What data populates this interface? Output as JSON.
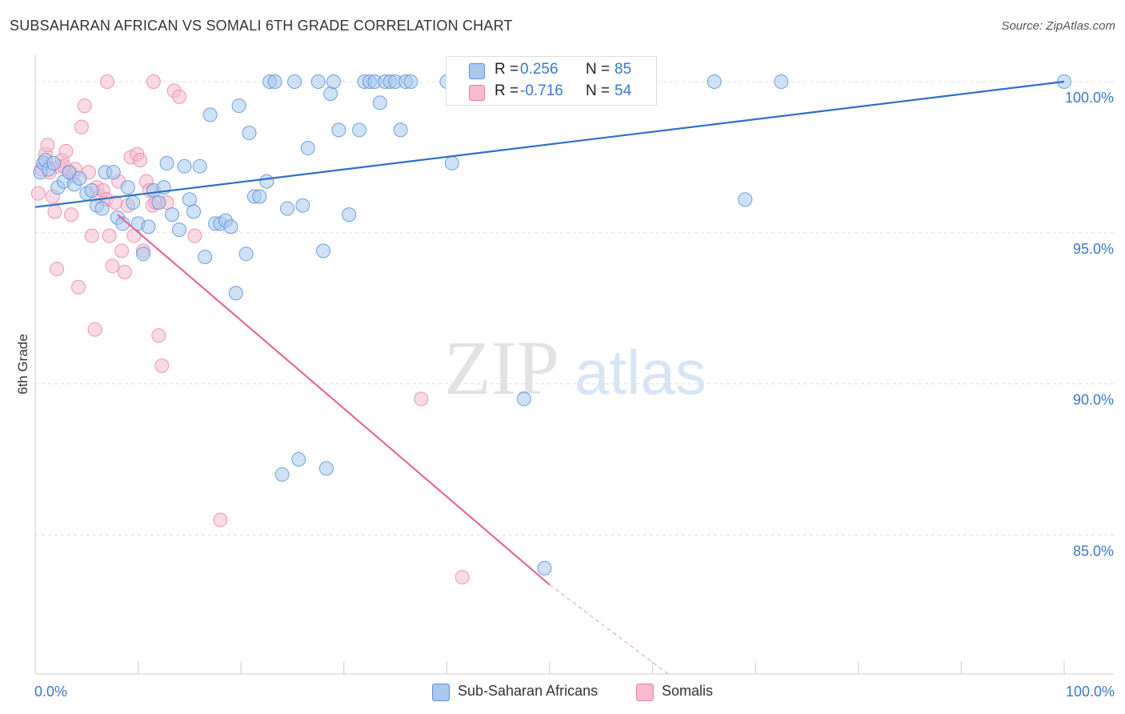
{
  "header": {
    "title": "SUBSAHARAN AFRICAN VS SOMALI 6TH GRADE CORRELATION CHART",
    "source": "Source: ZipAtlas.com"
  },
  "watermark": {
    "zip": "ZIP",
    "atlas": "atlas"
  },
  "legend_top": {
    "rows": [
      {
        "r_label": "R =",
        "r_value": "0.256",
        "n_label": "N =",
        "n_value": "85"
      },
      {
        "r_label": "R =",
        "r_value": "-0.716",
        "n_label": "N =",
        "n_value": "54"
      }
    ]
  },
  "legend_bottom": {
    "items": [
      {
        "label": "Sub-Saharan Africans"
      },
      {
        "label": "Somalis"
      }
    ]
  },
  "colors": {
    "blue_fill": "#a8c8ee",
    "blue_stroke": "#5b8fd6",
    "blue_line": "#2f6fc8",
    "pink_fill": "#f6bccd",
    "pink_stroke": "#e87fa2",
    "pink_line": "#e06a98",
    "axis_label": "#3a78c9",
    "grid": "#dddddd"
  },
  "chart_data": {
    "type": "scatter",
    "title": "SUBSAHARAN AFRICAN VS SOMALI 6TH GRADE CORRELATION CHART",
    "xlabel": "",
    "ylabel": "6th Grade",
    "xlim": [
      0,
      100
    ],
    "ylim": [
      80.4,
      100.9
    ],
    "x_tick_labels": [
      {
        "value": 0,
        "label": "0.0%"
      },
      {
        "value": 100,
        "label": "100.0%"
      }
    ],
    "y_tick_labels": [
      {
        "value": 100,
        "label": "100.0%"
      },
      {
        "value": 95,
        "label": "95.0%"
      },
      {
        "value": 90,
        "label": "90.0%"
      },
      {
        "value": 85,
        "label": "85.0%"
      }
    ],
    "series": [
      {
        "name": "Sub-Saharan Africans",
        "r": 0.256,
        "n": 85,
        "trend": {
          "x0": 0,
          "y0": 95.85,
          "x1": 100,
          "y1": 100.0
        },
        "points": [
          [
            0.5,
            97.0
          ],
          [
            0.8,
            97.3
          ],
          [
            1.0,
            97.4
          ],
          [
            1.3,
            97.1
          ],
          [
            1.8,
            97.3
          ],
          [
            2.2,
            96.5
          ],
          [
            2.8,
            96.7
          ],
          [
            3.3,
            97.0
          ],
          [
            3.8,
            96.6
          ],
          [
            4.3,
            96.8
          ],
          [
            5.0,
            96.3
          ],
          [
            5.5,
            96.4
          ],
          [
            6.0,
            95.9
          ],
          [
            6.5,
            95.8
          ],
          [
            6.8,
            97.0
          ],
          [
            7.6,
            97.0
          ],
          [
            8.0,
            95.5
          ],
          [
            8.5,
            95.3
          ],
          [
            9.0,
            96.5
          ],
          [
            9.5,
            96.0
          ],
          [
            10.0,
            95.3
          ],
          [
            10.5,
            94.3
          ],
          [
            11.0,
            95.2
          ],
          [
            11.5,
            96.4
          ],
          [
            12.0,
            96.0
          ],
          [
            12.5,
            96.5
          ],
          [
            12.8,
            97.3
          ],
          [
            13.3,
            95.6
          ],
          [
            14.0,
            95.1
          ],
          [
            14.5,
            97.2
          ],
          [
            15.0,
            96.1
          ],
          [
            15.4,
            95.7
          ],
          [
            16.0,
            97.2
          ],
          [
            16.5,
            94.2
          ],
          [
            17.0,
            98.9
          ],
          [
            17.5,
            95.3
          ],
          [
            18.0,
            95.3
          ],
          [
            18.5,
            95.4
          ],
          [
            19.0,
            95.2
          ],
          [
            19.5,
            93.0
          ],
          [
            19.8,
            99.2
          ],
          [
            20.5,
            94.3
          ],
          [
            20.8,
            98.3
          ],
          [
            21.3,
            96.2
          ],
          [
            21.8,
            96.2
          ],
          [
            22.5,
            96.7
          ],
          [
            22.8,
            100.0
          ],
          [
            23.3,
            100.0
          ],
          [
            24.0,
            87.0
          ],
          [
            24.5,
            95.8
          ],
          [
            25.2,
            100.0
          ],
          [
            25.6,
            87.5
          ],
          [
            26.0,
            95.9
          ],
          [
            26.5,
            97.8
          ],
          [
            27.5,
            100.0
          ],
          [
            28.0,
            94.4
          ],
          [
            28.3,
            87.2
          ],
          [
            28.7,
            99.6
          ],
          [
            29.0,
            100.0
          ],
          [
            29.5,
            98.4
          ],
          [
            30.5,
            95.6
          ],
          [
            31.5,
            98.4
          ],
          [
            32.0,
            100.0
          ],
          [
            32.5,
            100.0
          ],
          [
            33.0,
            100.0
          ],
          [
            33.5,
            99.3
          ],
          [
            34.0,
            100.0
          ],
          [
            34.5,
            100.0
          ],
          [
            35.0,
            100.0
          ],
          [
            35.5,
            98.4
          ],
          [
            36.0,
            100.0
          ],
          [
            36.5,
            100.0
          ],
          [
            40.0,
            100.0
          ],
          [
            40.5,
            97.3
          ],
          [
            42.0,
            100.0
          ],
          [
            43.5,
            100.0
          ],
          [
            46.0,
            100.0
          ],
          [
            47.5,
            100.0
          ],
          [
            47.5,
            89.5
          ],
          [
            49.5,
            83.9
          ],
          [
            54.0,
            100.0
          ],
          [
            66.0,
            100.0
          ],
          [
            69.0,
            96.1
          ],
          [
            72.5,
            100.0
          ],
          [
            100.0,
            100.0
          ]
        ]
      },
      {
        "name": "Somalis",
        "r": -0.716,
        "n": 54,
        "trend": {
          "x0": 8.0,
          "y0": 95.6,
          "x1": 50.0,
          "y1": 83.35
        },
        "trend_dashed": {
          "x0": 50.0,
          "y0": 83.35,
          "x1": 61.5,
          "y1": 80.4
        },
        "points": [
          [
            0.3,
            96.3
          ],
          [
            0.6,
            97.1
          ],
          [
            1.0,
            97.6
          ],
          [
            1.2,
            97.9
          ],
          [
            1.4,
            97.0
          ],
          [
            1.7,
            96.2
          ],
          [
            1.9,
            95.7
          ],
          [
            2.1,
            93.8
          ],
          [
            2.3,
            97.2
          ],
          [
            2.6,
            97.4
          ],
          [
            2.8,
            97.2
          ],
          [
            3.0,
            97.7
          ],
          [
            3.3,
            97.0
          ],
          [
            3.5,
            95.6
          ],
          [
            3.7,
            96.9
          ],
          [
            3.9,
            97.1
          ],
          [
            4.2,
            93.2
          ],
          [
            4.5,
            98.5
          ],
          [
            4.8,
            99.2
          ],
          [
            5.2,
            97.0
          ],
          [
            5.5,
            94.9
          ],
          [
            5.8,
            91.8
          ],
          [
            6.0,
            96.5
          ],
          [
            6.3,
            96.2
          ],
          [
            6.6,
            96.4
          ],
          [
            6.9,
            96.1
          ],
          [
            7.2,
            94.9
          ],
          [
            7.5,
            93.9
          ],
          [
            7.8,
            96.0
          ],
          [
            8.1,
            96.7
          ],
          [
            8.4,
            94.4
          ],
          [
            8.7,
            93.7
          ],
          [
            9.0,
            95.9
          ],
          [
            9.3,
            97.5
          ],
          [
            9.6,
            94.9
          ],
          [
            9.9,
            97.6
          ],
          [
            10.2,
            97.4
          ],
          [
            10.5,
            94.4
          ],
          [
            10.8,
            96.7
          ],
          [
            11.1,
            96.4
          ],
          [
            11.4,
            95.9
          ],
          [
            11.7,
            96.0
          ],
          [
            12.0,
            91.6
          ],
          [
            12.3,
            90.6
          ],
          [
            12.8,
            96.0
          ],
          [
            7.0,
            100.0
          ],
          [
            11.5,
            100.0
          ],
          [
            13.5,
            99.7
          ],
          [
            14.0,
            99.5
          ],
          [
            15.5,
            94.9
          ],
          [
            18.0,
            85.5
          ],
          [
            37.5,
            89.5
          ],
          [
            41.5,
            83.6
          ],
          [
            43.0,
            100.0
          ]
        ]
      }
    ]
  }
}
